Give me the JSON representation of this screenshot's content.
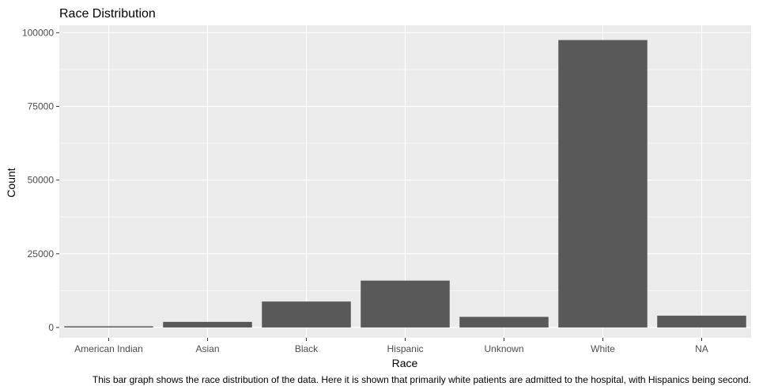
{
  "chart_data": {
    "type": "bar",
    "title": "Race Distribution",
    "xlabel": "Race",
    "ylabel": "Count",
    "categories": [
      "American Indian",
      "Asian",
      "Black",
      "Hispanic",
      "Unknown",
      "White",
      "NA"
    ],
    "values": [
      400,
      1900,
      8800,
      15900,
      3600,
      97500,
      4000
    ],
    "ylim": [
      -3500,
      102500
    ],
    "yticks": [
      0,
      25000,
      50000,
      75000,
      100000
    ],
    "ytick_labels": [
      "0",
      "25000",
      "50000",
      "75000",
      "100000"
    ],
    "grid": true,
    "legend": "none",
    "caption": "This bar graph shows the race distribution of the data. Here it is shown that primarily white patients are admitted to the hospital, with Hispanics being second.",
    "colors": {
      "panel": "#ebebeb",
      "grid_major": "#ffffff",
      "bar": "#595959",
      "tick": "#333333"
    }
  }
}
